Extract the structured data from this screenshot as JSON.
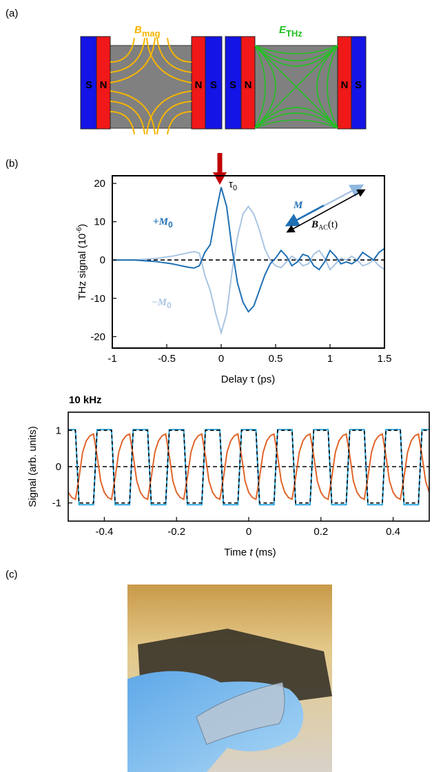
{
  "panels": {
    "a": {
      "label": "(a)",
      "magnet_labels": [
        "S",
        "N",
        "N",
        "S",
        "S",
        "N",
        "N",
        "S"
      ],
      "b_field": {
        "symbol": "B",
        "subscript": "mag"
      },
      "e_field": {
        "symbol": "E",
        "subscript": "THz"
      }
    },
    "b": {
      "label": "(b)"
    },
    "c": {
      "label": "(c)"
    }
  },
  "chart_data": [
    {
      "type": "line",
      "xlabel": "Delay τ (ps)",
      "ylabel": {
        "text": "THz signal (10",
        "sup": "-6",
        "suffix": ")"
      },
      "annotations": {
        "tau": {
          "symbol": "τ",
          "subscript": "0"
        },
        "plus_m": {
          "prefix": "+",
          "symbol": "M",
          "subscript": "0"
        },
        "minus_m": {
          "prefix": "−",
          "symbol": "M",
          "subscript": "0"
        },
        "m_vector": "M",
        "b_ac": {
          "symbol": "B",
          "subscript": "AC",
          "suffix": "(t)"
        }
      },
      "x": [
        -1,
        -0.95,
        -0.9,
        -0.85,
        -0.8,
        -0.75,
        -0.7,
        -0.65,
        -0.6,
        -0.55,
        -0.5,
        -0.45,
        -0.4,
        -0.35,
        -0.3,
        -0.25,
        -0.2,
        -0.15,
        -0.1,
        -0.05,
        0,
        0.05,
        0.1,
        0.15,
        0.2,
        0.25,
        0.3,
        0.35,
        0.4,
        0.45,
        0.5,
        0.55,
        0.6,
        0.65,
        0.7,
        0.75,
        0.8,
        0.85,
        0.9,
        0.95,
        1,
        1.05,
        1.1,
        1.15,
        1.2,
        1.25,
        1.3,
        1.35,
        1.4,
        1.45,
        1.5
      ],
      "series": [
        {
          "color": "#a9c4e2",
          "dashed": false,
          "values": [
            0,
            0,
            0,
            0,
            0,
            0.1,
            0.2,
            0.3,
            0.4,
            0.6,
            0.8,
            1,
            1.3,
            1.6,
            1.9,
            2.2,
            1.8,
            -4,
            -8,
            -14,
            -19,
            -14,
            -3,
            6,
            12,
            14,
            12,
            8,
            3,
            0,
            -1.5,
            -2,
            -0.5,
            1,
            0,
            -1.5,
            -1,
            1.5,
            2.5,
            0.5,
            -2.5,
            -1,
            0.5,
            0,
            1,
            0,
            -1.5,
            -1,
            0,
            -1.5,
            -2.5
          ]
        },
        {
          "color": "#1f6fb4",
          "dashed": false,
          "values": [
            0,
            0,
            0,
            0,
            0,
            -0.1,
            -0.2,
            -0.3,
            -0.4,
            -0.6,
            -0.8,
            -1,
            -1.3,
            -1.6,
            -1.9,
            -2.1,
            -1.5,
            2,
            4,
            12,
            19,
            14,
            3,
            -6,
            -11,
            -13.5,
            -12,
            -8,
            -4,
            -1,
            0.5,
            2.5,
            1,
            -1.5,
            -0.5,
            1.5,
            1,
            -1.5,
            -2.5,
            -0.5,
            2.5,
            1,
            -1,
            -0.5,
            -1,
            0,
            2,
            1,
            0,
            2,
            3
          ]
        }
      ],
      "xlim": [
        -1,
        1.5
      ],
      "xticks": [
        -1,
        -0.5,
        0,
        0.5,
        1,
        1.5
      ],
      "ylim": [
        -23,
        22
      ],
      "yticks": [
        -20,
        -10,
        0,
        10,
        20
      ],
      "zero_line": true
    },
    {
      "type": "line",
      "title": "10 kHz",
      "xlabel": {
        "text": "Time ",
        "var": "t",
        "suffix": " (ms)"
      },
      "ylabel": "Signal (arb. units)",
      "x": [
        -0.5,
        -0.49,
        -0.48,
        -0.47,
        -0.46,
        -0.45,
        -0.44,
        -0.43,
        -0.42,
        -0.41,
        -0.4,
        -0.39,
        -0.38,
        -0.37,
        -0.36,
        -0.35,
        -0.34,
        -0.33,
        -0.32,
        -0.31,
        -0.3,
        -0.29,
        -0.28,
        -0.27,
        -0.26,
        -0.25,
        -0.24,
        -0.23,
        -0.22,
        -0.21,
        -0.2,
        -0.19,
        -0.18,
        -0.17,
        -0.16,
        -0.15,
        -0.14,
        -0.13,
        -0.12,
        -0.11,
        -0.1,
        -0.09,
        -0.08,
        -0.07,
        -0.06,
        -0.05,
        -0.04,
        -0.03,
        -0.02,
        -0.01,
        0,
        0.01,
        0.02,
        0.03,
        0.04,
        0.05,
        0.06,
        0.07,
        0.08,
        0.09,
        0.1,
        0.11,
        0.12,
        0.13,
        0.14,
        0.15,
        0.16,
        0.17,
        0.18,
        0.19,
        0.2,
        0.21,
        0.22,
        0.23,
        0.24,
        0.25,
        0.26,
        0.27,
        0.28,
        0.29,
        0.3,
        0.31,
        0.32,
        0.33,
        0.34,
        0.35,
        0.36,
        0.37,
        0.38,
        0.39,
        0.4,
        0.41,
        0.42,
        0.43,
        0.44,
        0.45,
        0.46,
        0.47,
        0.48,
        0.49,
        0.5
      ],
      "series": [
        {
          "color": "#2aa7df",
          "dashed": false,
          "values": [
            1.02,
            1.02,
            1.02,
            -1.05,
            -1.05,
            -1.05,
            -1.05,
            -1.05,
            1.02,
            1.02,
            1.02,
            1.02,
            1.02,
            -1.05,
            -1.05,
            -1.05,
            -1.05,
            -1.05,
            1.02,
            1.02,
            1.02,
            1.02,
            1.02,
            -1.05,
            -1.05,
            -1.05,
            -1.05,
            -1.05,
            1.02,
            1.02,
            1.02,
            1.02,
            1.02,
            -1.05,
            -1.05,
            -1.05,
            -1.05,
            -1.05,
            1.02,
            1.02,
            1.02,
            1.02,
            1.02,
            -1.05,
            -1.05,
            -1.05,
            -1.05,
            -1.05,
            1.02,
            1.02,
            1.02,
            1.02,
            1.02,
            -1.05,
            -1.05,
            -1.05,
            -1.05,
            -1.05,
            1.02,
            1.02,
            1.02,
            1.02,
            1.02,
            -1.05,
            -1.05,
            -1.05,
            -1.05,
            -1.05,
            1.02,
            1.02,
            1.02,
            1.02,
            1.02,
            -1.05,
            -1.05,
            -1.05,
            -1.05,
            -1.05,
            1.02,
            1.02,
            1.02,
            1.02,
            1.02,
            -1.05,
            -1.05,
            -1.05,
            -1.05,
            -1.05,
            1.02,
            1.02,
            1.02,
            1.02,
            1.02,
            -1.05,
            -1.05,
            -1.05,
            -1.05,
            -1.05,
            1.02,
            1.02,
            1.02
          ]
        },
        {
          "color": "#e0642a",
          "dashed": false,
          "values": [
            -0.71,
            -0.85,
            -0.9,
            -0.3,
            0.4,
            0.71,
            0.85,
            0.9,
            0.3,
            -0.4,
            -0.71,
            -0.85,
            -0.9,
            -0.3,
            0.4,
            0.71,
            0.85,
            0.9,
            0.3,
            -0.4,
            -0.71,
            -0.85,
            -0.9,
            -0.3,
            0.4,
            0.71,
            0.85,
            0.9,
            0.3,
            -0.4,
            -0.71,
            -0.85,
            -0.9,
            -0.3,
            0.4,
            0.71,
            0.85,
            0.9,
            0.3,
            -0.4,
            -0.71,
            -0.85,
            -0.9,
            -0.3,
            0.4,
            0.71,
            0.85,
            0.9,
            0.3,
            -0.4,
            -0.71,
            -0.85,
            -0.9,
            -0.3,
            0.4,
            0.71,
            0.85,
            0.9,
            0.3,
            -0.4,
            -0.71,
            -0.85,
            -0.9,
            -0.3,
            0.4,
            0.71,
            0.85,
            0.9,
            0.3,
            -0.4,
            -0.71,
            -0.85,
            -0.9,
            -0.3,
            0.4,
            0.71,
            0.85,
            0.9,
            0.3,
            -0.4,
            -0.71,
            -0.85,
            -0.9,
            -0.3,
            0.4,
            0.71,
            0.85,
            0.9,
            0.3,
            -0.4,
            -0.71,
            -0.85,
            -0.9,
            -0.3,
            0.4,
            0.71,
            0.85,
            0.9,
            0.3,
            -0.4,
            -0.71
          ]
        },
        {
          "color": "#000000",
          "dashed": true,
          "values": [
            1,
            1,
            1,
            -1,
            -1,
            -1,
            -1,
            -1,
            1,
            1,
            1,
            1,
            1,
            -1,
            -1,
            -1,
            -1,
            -1,
            1,
            1,
            1,
            1,
            1,
            -1,
            -1,
            -1,
            -1,
            -1,
            1,
            1,
            1,
            1,
            1,
            -1,
            -1,
            -1,
            -1,
            -1,
            1,
            1,
            1,
            1,
            1,
            -1,
            -1,
            -1,
            -1,
            -1,
            1,
            1,
            1,
            1,
            1,
            -1,
            -1,
            -1,
            -1,
            -1,
            1,
            1,
            1,
            1,
            1,
            -1,
            -1,
            -1,
            -1,
            -1,
            1,
            1,
            1,
            1,
            1,
            -1,
            -1,
            -1,
            -1,
            -1,
            1,
            1,
            1,
            1,
            1,
            -1,
            -1,
            -1,
            -1,
            -1,
            1,
            1,
            1,
            1,
            1,
            -1,
            -1,
            -1,
            -1,
            -1,
            1,
            1,
            1
          ]
        }
      ],
      "xlim": [
        -0.5,
        0.5
      ],
      "xticks": [
        -0.4,
        -0.2,
        0,
        0.2,
        0.4
      ],
      "ylim": [
        -1.5,
        1.5
      ],
      "yticks": [
        -1,
        0,
        1
      ],
      "zero_line": true
    }
  ]
}
